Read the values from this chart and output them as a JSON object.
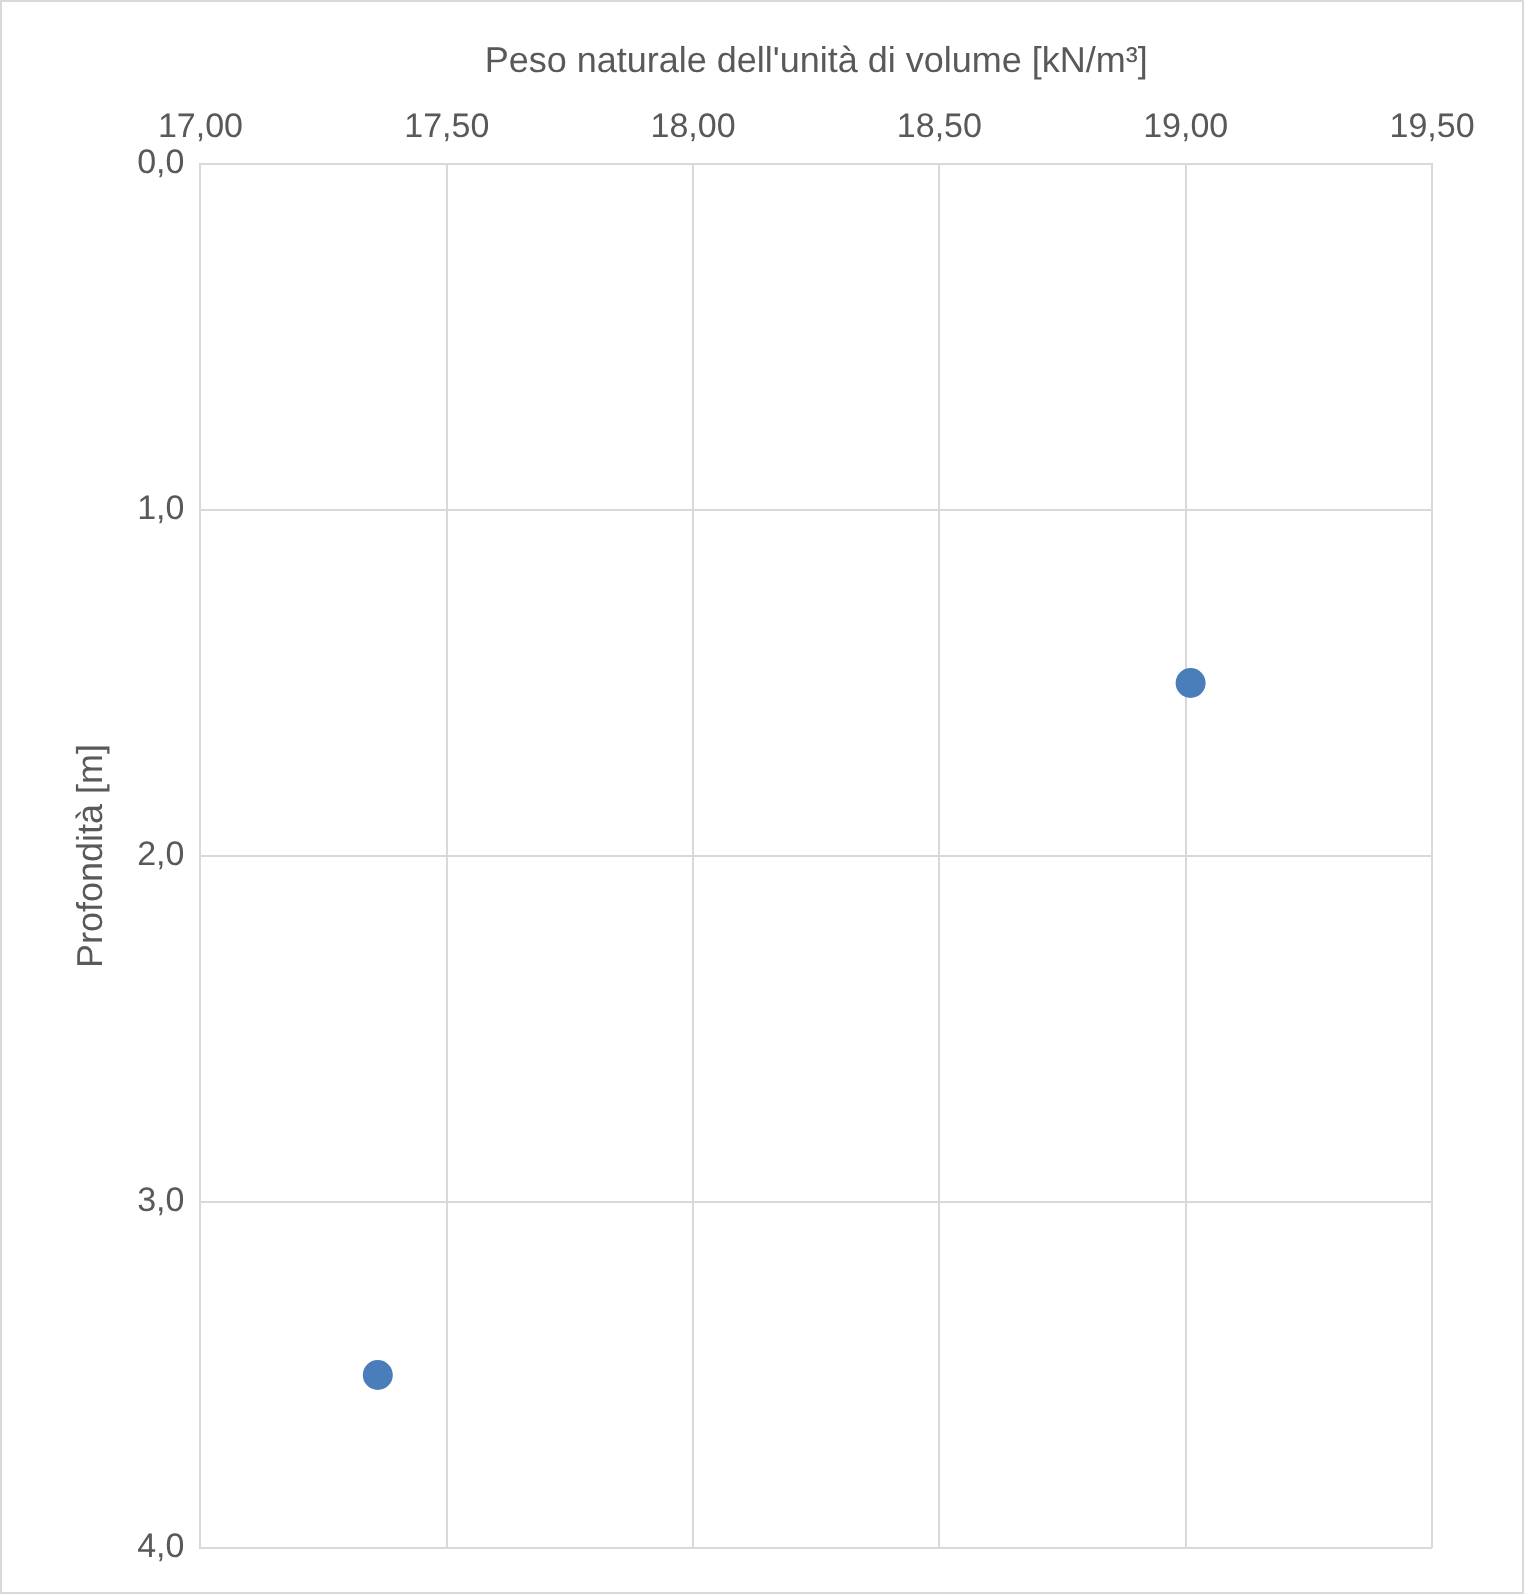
{
  "chart_data": {
    "type": "scatter",
    "xlabel": "Peso naturale dell'unità di volume [kN/m³]",
    "ylabel": "Profondità [m]",
    "xlim": [
      17,
      19.5
    ],
    "xticks": [
      {
        "value": 17,
        "label": "17,00"
      },
      {
        "value": 17.5,
        "label": "17,50"
      },
      {
        "value": 18,
        "label": "18,00"
      },
      {
        "value": 18.5,
        "label": "18,50"
      },
      {
        "value": 19,
        "label": "19,00"
      },
      {
        "value": 19.5,
        "label": "19,50"
      }
    ],
    "ylim": [
      4,
      0
    ],
    "yticks": [
      {
        "value": 0,
        "label": "0,0"
      },
      {
        "value": 1,
        "label": "1,0"
      },
      {
        "value": 2,
        "label": "2,0"
      },
      {
        "value": 3,
        "label": "3,0"
      },
      {
        "value": 4,
        "label": "4,0"
      }
    ],
    "grid": true,
    "marker": "circle",
    "series": [
      {
        "color": "#4a7ebb",
        "x": [
          19.01,
          17.36
        ],
        "values": [
          1.5,
          3.5
        ]
      }
    ]
  }
}
